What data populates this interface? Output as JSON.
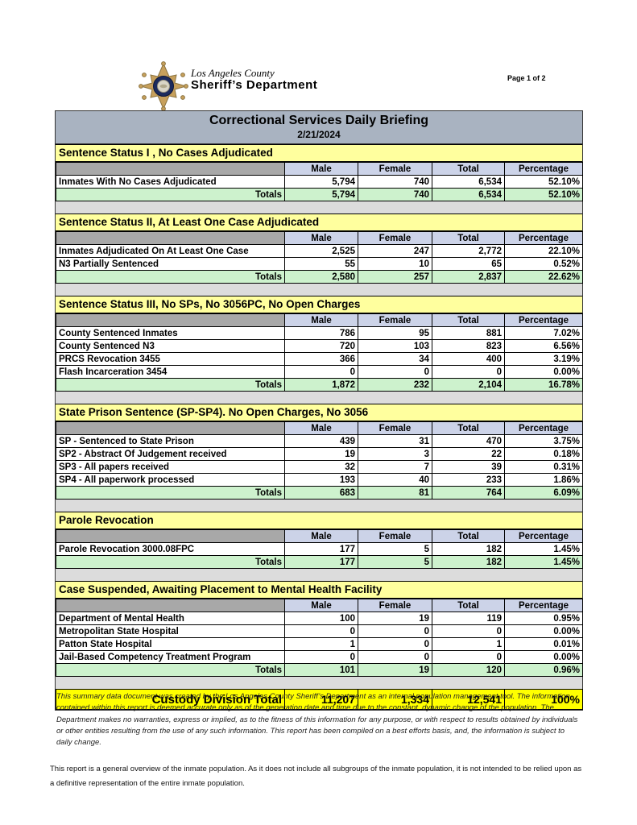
{
  "header": {
    "agency_line1": "Los Angeles County",
    "agency_line2": "Sheriff’s Department",
    "page_label": "Page 1 of 2"
  },
  "banner": {
    "title": "Correctional Services Daily Briefing",
    "date": "2/21/2024"
  },
  "columns": [
    "Male",
    "Female",
    "Total",
    "Percentage"
  ],
  "totals_label": "Totals",
  "sections": [
    {
      "title": "Sentence Status I , No Cases Adjudicated",
      "rows": [
        {
          "label": "Inmates With No Cases Adjudicated",
          "male": "5,794",
          "female": "740",
          "total": "6,534",
          "pct": "52.10%"
        }
      ],
      "totals": {
        "male": "5,794",
        "female": "740",
        "total": "6,534",
        "pct": "52.10%"
      }
    },
    {
      "title": "Sentence Status II, At Least One Case Adjudicated",
      "rows": [
        {
          "label": "Inmates Adjudicated On At Least One Case",
          "male": "2,525",
          "female": "247",
          "total": "2,772",
          "pct": "22.10%"
        },
        {
          "label": "N3 Partially Sentenced",
          "male": "55",
          "female": "10",
          "total": "65",
          "pct": "0.52%"
        }
      ],
      "totals": {
        "male": "2,580",
        "female": "257",
        "total": "2,837",
        "pct": "22.62%"
      }
    },
    {
      "title": "Sentence Status III, No SPs, No 3056PC, No Open Charges",
      "rows": [
        {
          "label": "County Sentenced Inmates",
          "male": "786",
          "female": "95",
          "total": "881",
          "pct": "7.02%"
        },
        {
          "label": "County Sentenced N3",
          "male": "720",
          "female": "103",
          "total": "823",
          "pct": "6.56%"
        },
        {
          "label": "PRCS Revocation 3455",
          "male": "366",
          "female": "34",
          "total": "400",
          "pct": "3.19%"
        },
        {
          "label": "Flash Incarceration 3454",
          "male": "0",
          "female": "0",
          "total": "0",
          "pct": "0.00%"
        }
      ],
      "totals": {
        "male": "1,872",
        "female": "232",
        "total": "2,104",
        "pct": "16.78%"
      }
    },
    {
      "title": "State Prison Sentence (SP-SP4). No Open Charges, No 3056",
      "rows": [
        {
          "label": "SP - Sentenced to State Prison",
          "male": "439",
          "female": "31",
          "total": "470",
          "pct": "3.75%"
        },
        {
          "label": "SP2 - Abstract Of Judgement received",
          "male": "19",
          "female": "3",
          "total": "22",
          "pct": "0.18%"
        },
        {
          "label": "SP3 - All papers received",
          "male": "32",
          "female": "7",
          "total": "39",
          "pct": "0.31%"
        },
        {
          "label": "SP4 - All paperwork processed",
          "male": "193",
          "female": "40",
          "total": "233",
          "pct": "1.86%"
        }
      ],
      "totals": {
        "male": "683",
        "female": "81",
        "total": "764",
        "pct": "6.09%"
      }
    },
    {
      "title": "Parole Revocation",
      "rows": [
        {
          "label": "Parole Revocation 3000.08FPC",
          "male": "177",
          "female": "5",
          "total": "182",
          "pct": "1.45%"
        }
      ],
      "totals": {
        "male": "177",
        "female": "5",
        "total": "182",
        "pct": "1.45%"
      }
    },
    {
      "title": "Case Suspended, Awaiting Placement to Mental Health Facility",
      "rows": [
        {
          "label": "Department of Mental Health",
          "male": "100",
          "female": "19",
          "total": "119",
          "pct": "0.95%"
        },
        {
          "label": "Metropolitan State Hospital",
          "male": "0",
          "female": "0",
          "total": "0",
          "pct": "0.00%"
        },
        {
          "label": "Patton State Hospital",
          "male": "1",
          "female": "0",
          "total": "1",
          "pct": "0.01%"
        },
        {
          "label": "Jail-Based Competency Treatment Program",
          "male": "0",
          "female": "0",
          "total": "0",
          "pct": "0.00%"
        }
      ],
      "totals": {
        "male": "101",
        "female": "19",
        "total": "120",
        "pct": "0.96%"
      }
    }
  ],
  "grand_total": {
    "label": "Custody Division Total",
    "male": "11,207",
    "female": "1,334",
    "total": "12,541",
    "pct": "100%"
  },
  "colors": {
    "banner": "#a9b3c1",
    "section_header": "#ffff9e",
    "column_header": "#ccd3e8",
    "corner_cell": "#a8a8a8",
    "totals_row": "#cdf2cd",
    "grand_total_row": "#ffff00",
    "badge_gold": "#c7a05c",
    "badge_navy": "#1c2b5e"
  },
  "disclaimer": "This summary data document was created by the Los Angeles County Sheriff’s Department as an internal population management tool.  The information contained within this report is deemed accurate only as of the generation date and time due to the constant, dynamic change of the population.  The Department makes no warranties, express or implied, as to the fitness of this information for any purpose, or with respect to results obtained by individuals or other entities resulting from the use of any such information.  This report has been compiled on a best efforts basis, and, the information is subject to daily change.",
  "endnote": "This report is a general overview of the inmate population.  As it does not include all subgroups of the inmate population, it is not intended to be relied upon as a definitive representation of the entire inmate population."
}
